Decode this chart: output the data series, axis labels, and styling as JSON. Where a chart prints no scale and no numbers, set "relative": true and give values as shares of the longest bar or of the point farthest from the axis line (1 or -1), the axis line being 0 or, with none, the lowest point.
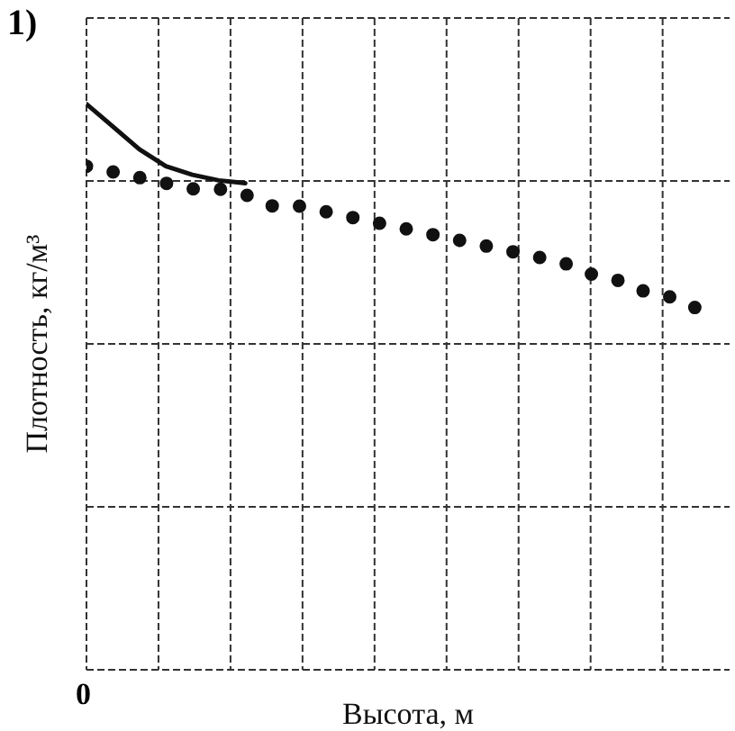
{
  "chart_data": {
    "type": "line",
    "title": "1)",
    "xlabel": "Высота, м",
    "ylabel": "Плотность, кг/м³",
    "relative": true,
    "grid": true,
    "annotations": [
      "0"
    ],
    "categories": [
      null,
      null,
      null,
      null,
      null,
      null,
      null,
      null,
      null,
      null,
      null,
      null,
      null,
      null,
      null,
      null,
      null,
      null,
      null,
      null,
      null,
      null,
      null,
      null
    ],
    "series": [
      {
        "type": "line",
        "color": "#111111",
        "marker": "none",
        "line_style": "solid",
        "values": [
          1,
          0.96,
          0.92,
          0.89,
          0.875,
          0.865,
          0.86,
          null,
          null,
          null,
          null,
          null,
          null,
          null,
          null,
          null,
          null,
          null,
          null,
          null,
          null,
          null,
          null,
          null
        ]
      },
      {
        "color": "#111111",
        "marker": "none",
        "line_style": "dotted",
        "values": [
          0.89,
          0.88,
          0.87,
          0.86,
          0.85,
          0.85,
          0.84,
          0.82,
          0.82,
          0.81,
          0.8,
          0.79,
          0.78,
          0.77,
          0.76,
          0.75,
          0.74,
          0.73,
          0.72,
          0.7,
          0.69,
          0.67,
          0.66,
          0.64
        ]
      }
    ]
  }
}
